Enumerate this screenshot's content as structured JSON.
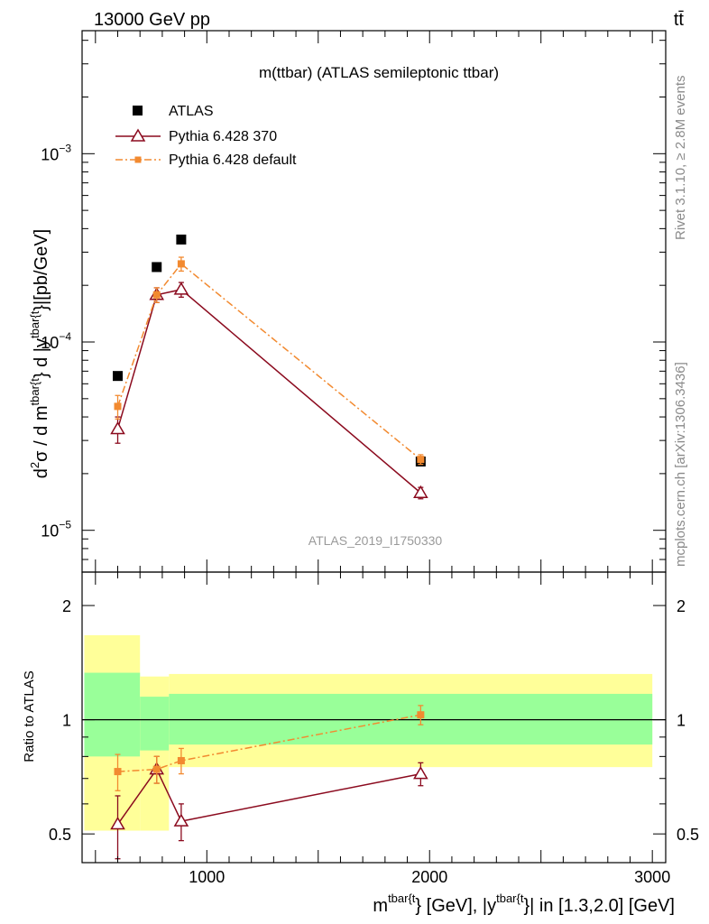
{
  "header": {
    "left": "13000 GeV pp",
    "right": "tt̄"
  },
  "side_labels": {
    "rivet": "Rivet 3.1.10, ≥ 2.8M events",
    "mcplots": "mcplots.cern.ch [arXiv:1306.3436]"
  },
  "chart_data": [
    {
      "type": "scatter",
      "panel": "main",
      "title": "m(ttbar) (ATLAS semileptonic ttbar)",
      "ylabel_parts": [
        "d",
        "2",
        "σ / d m",
        "tbar{t",
        "} d |y",
        "tbar{t",
        "}|[pb/GeV]"
      ],
      "watermark": "ATLAS_2019_I1750330",
      "yscale": "log",
      "ylim": [
        6e-06,
        0.0045
      ],
      "xlim": [
        440,
        3060
      ],
      "y_ticks": [
        {
          "value": 1e-05,
          "mantissa": "10",
          "exponent": "−5"
        },
        {
          "value": 0.0001,
          "mantissa": "10",
          "exponent": "−4"
        },
        {
          "value": 0.001,
          "mantissa": "10",
          "exponent": "−3"
        }
      ],
      "legend_position": "top-left",
      "series": [
        {
          "name": "ATLAS",
          "color": "#000000",
          "marker": "square",
          "x": [
            600,
            775,
            885,
            1960
          ],
          "y": [
            6.6e-05,
            0.00025,
            0.00035,
            2.32e-05
          ],
          "bins": [
            [
              450,
              700
            ],
            [
              700,
              830
            ],
            [
              830,
              950
            ],
            [
              950,
              3000
            ]
          ]
        },
        {
          "name": "Pythia 6.428 370",
          "color": "#8b0a1e",
          "marker": "open-triangle",
          "line": "solid",
          "x": [
            600,
            775,
            885,
            1960
          ],
          "y": [
            3.45e-05,
            0.000178,
            0.00019,
            1.58e-05
          ],
          "yerr": [
            5.5e-06,
            1.6e-05,
            1.7e-05,
            1.1e-06
          ]
        },
        {
          "name": "Pythia 6.428 default",
          "color": "#f28a30",
          "marker": "square",
          "line": "dashdot",
          "x": [
            600,
            775,
            885,
            1960
          ],
          "y": [
            4.55e-05,
            0.000178,
            0.00026,
            2.38e-05
          ],
          "yerr": [
            6.5e-06,
            1.6e-05,
            2.2e-05,
            1.4e-06
          ]
        }
      ]
    },
    {
      "type": "scatter",
      "panel": "ratio",
      "ylabel": "Ratio to ATLAS",
      "yscale": "log",
      "ylim": [
        0.42,
        2.45
      ],
      "xlim": [
        440,
        3060
      ],
      "y_ticks": [
        0.5,
        1,
        2
      ],
      "x_ticks": [
        1000,
        2000,
        3000
      ],
      "xlabel_parts": [
        "m",
        "tbar{t",
        "} [GeV], |y",
        "tbar{t",
        "}| in [1.3,2.0] [GeV]"
      ],
      "bands": [
        {
          "x": [
            450,
            700
          ],
          "inner": [
            0.8,
            1.33
          ],
          "outer": [
            0.51,
            1.67
          ]
        },
        {
          "x": [
            700,
            830
          ],
          "inner": [
            0.83,
            1.15
          ],
          "outer": [
            0.51,
            1.3
          ]
        },
        {
          "x": [
            830,
            3000
          ],
          "inner": [
            0.86,
            1.17
          ],
          "outer": [
            0.75,
            1.32
          ]
        }
      ],
      "band_colors": {
        "inner": "#99ff99",
        "outer": "#ffff99"
      },
      "series": [
        {
          "name": "Pythia 6.428 370",
          "color": "#8b0a1e",
          "marker": "open-triangle",
          "line": "solid",
          "x": [
            600,
            775,
            885,
            1960
          ],
          "y": [
            0.53,
            0.74,
            0.54,
            0.72
          ],
          "yerr": [
            0.1,
            0.06,
            0.06,
            0.05
          ]
        },
        {
          "name": "Pythia 6.428 default",
          "color": "#f28a30",
          "marker": "square",
          "line": "dashdot",
          "x": [
            600,
            775,
            885,
            1960
          ],
          "y": [
            0.73,
            0.74,
            0.78,
            1.03
          ],
          "yerr": [
            0.08,
            0.06,
            0.06,
            0.06
          ]
        }
      ]
    }
  ]
}
